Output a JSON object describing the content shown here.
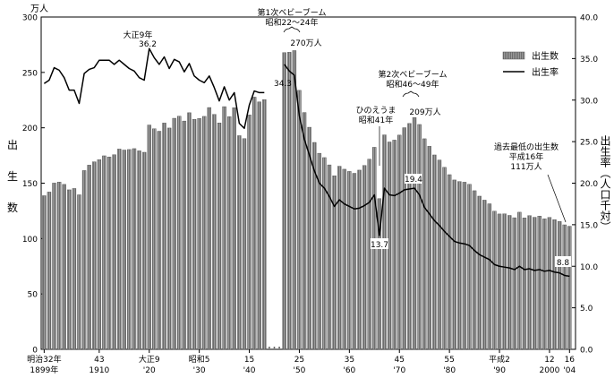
{
  "chart_data": {
    "type": "bar+line",
    "y_left": {
      "label": "出生数",
      "unit": "万人",
      "ylim": [
        0,
        300
      ],
      "ticks": [
        "0",
        "50",
        "100",
        "150",
        "200",
        "250",
        "300"
      ]
    },
    "y_right": {
      "label": "出生率（人口千対）",
      "ylim": [
        0,
        40
      ],
      "ticks": [
        "0.0",
        "5.0",
        "10.0",
        "15.0",
        "20.0",
        "25.0",
        "30.0",
        "35.0",
        "40.0"
      ]
    },
    "legend": {
      "placement": "top-right",
      "bar_label": "出生数",
      "line_label": "出生率"
    },
    "x_range": [
      1899,
      2004
    ],
    "x_ticks": [
      {
        "year": 1899,
        "top": "明治32年",
        "bottom": "1899年"
      },
      {
        "year": 1910,
        "top": "43",
        "bottom": "1910"
      },
      {
        "year": 1920,
        "top": "大正9",
        "bottom": "'20"
      },
      {
        "year": 1930,
        "top": "昭和5",
        "bottom": "'30"
      },
      {
        "year": 1940,
        "top": "15",
        "bottom": "'40"
      },
      {
        "year": 1950,
        "top": "25",
        "bottom": "'50"
      },
      {
        "year": 1960,
        "top": "35",
        "bottom": "'60"
      },
      {
        "year": 1970,
        "top": "45",
        "bottom": "'70"
      },
      {
        "year": 1980,
        "top": "55",
        "bottom": "'80"
      },
      {
        "year": 1990,
        "top": "平成2",
        "bottom": "'90"
      },
      {
        "year": 2000,
        "top": "12",
        "bottom": "2000"
      },
      {
        "year": 2004,
        "top": "16",
        "bottom": "'04"
      }
    ],
    "births": [
      [
        1899,
        138.7
      ],
      [
        1900,
        142.0
      ],
      [
        1901,
        150.1
      ],
      [
        1902,
        151.0
      ],
      [
        1903,
        148.9
      ],
      [
        1904,
        144.0
      ],
      [
        1905,
        145.2
      ],
      [
        1906,
        139.5
      ],
      [
        1907,
        161.4
      ],
      [
        1908,
        166.3
      ],
      [
        1909,
        169.3
      ],
      [
        1910,
        171.2
      ],
      [
        1911,
        174.7
      ],
      [
        1912,
        173.7
      ],
      [
        1913,
        175.7
      ],
      [
        1914,
        180.8
      ],
      [
        1915,
        179.9
      ],
      [
        1916,
        180.4
      ],
      [
        1917,
        181.2
      ],
      [
        1918,
        179.2
      ],
      [
        1919,
        177.9
      ],
      [
        1920,
        202.5
      ],
      [
        1921,
        199.1
      ],
      [
        1922,
        196.9
      ],
      [
        1923,
        204.3
      ],
      [
        1924,
        199.8
      ],
      [
        1925,
        208.6
      ],
      [
        1926,
        210.5
      ],
      [
        1927,
        206.1
      ],
      [
        1928,
        213.6
      ],
      [
        1929,
        207.7
      ],
      [
        1930,
        208.5
      ],
      [
        1931,
        210.3
      ],
      [
        1932,
        218.3
      ],
      [
        1933,
        212.1
      ],
      [
        1934,
        204.4
      ],
      [
        1935,
        219.1
      ],
      [
        1936,
        210.1
      ],
      [
        1937,
        218.1
      ],
      [
        1938,
        192.9
      ],
      [
        1939,
        190.2
      ],
      [
        1940,
        211.6
      ],
      [
        1941,
        227.7
      ],
      [
        1942,
        223.4
      ],
      [
        1943,
        225.4
      ],
      [
        1947,
        267.9
      ],
      [
        1948,
        268.2
      ],
      [
        1949,
        269.7
      ],
      [
        1950,
        233.8
      ],
      [
        1951,
        213.8
      ],
      [
        1952,
        200.5
      ],
      [
        1953,
        186.8
      ],
      [
        1954,
        177.0
      ],
      [
        1955,
        173.1
      ],
      [
        1956,
        166.5
      ],
      [
        1957,
        156.7
      ],
      [
        1958,
        165.3
      ],
      [
        1959,
        162.6
      ],
      [
        1960,
        160.6
      ],
      [
        1961,
        158.9
      ],
      [
        1962,
        161.8
      ],
      [
        1963,
        166.0
      ],
      [
        1964,
        171.7
      ],
      [
        1965,
        182.4
      ],
      [
        1966,
        136.1
      ],
      [
        1967,
        193.6
      ],
      [
        1968,
        187.2
      ],
      [
        1969,
        188.9
      ],
      [
        1970,
        193.4
      ],
      [
        1971,
        200.1
      ],
      [
        1972,
        203.9
      ],
      [
        1973,
        209.2
      ],
      [
        1974,
        203.0
      ],
      [
        1975,
        190.1
      ],
      [
        1976,
        183.3
      ],
      [
        1977,
        175.5
      ],
      [
        1978,
        170.9
      ],
      [
        1979,
        164.3
      ],
      [
        1980,
        157.7
      ],
      [
        1981,
        152.9
      ],
      [
        1982,
        151.5
      ],
      [
        1983,
        150.9
      ],
      [
        1984,
        149.0
      ],
      [
        1985,
        143.2
      ],
      [
        1986,
        138.3
      ],
      [
        1987,
        134.7
      ],
      [
        1988,
        131.4
      ],
      [
        1989,
        124.7
      ],
      [
        1990,
        122.2
      ],
      [
        1991,
        122.3
      ],
      [
        1992,
        120.9
      ],
      [
        1993,
        118.8
      ],
      [
        1994,
        123.8
      ],
      [
        1995,
        118.7
      ],
      [
        1996,
        120.7
      ],
      [
        1997,
        119.2
      ],
      [
        1998,
        120.3
      ],
      [
        1999,
        117.8
      ],
      [
        2000,
        119.1
      ],
      [
        2001,
        117.1
      ],
      [
        2002,
        115.4
      ],
      [
        2003,
        112.4
      ],
      [
        2004,
        111.1
      ]
    ],
    "rate": [
      [
        1899,
        32.0
      ],
      [
        1900,
        32.4
      ],
      [
        1901,
        33.9
      ],
      [
        1902,
        33.6
      ],
      [
        1903,
        32.7
      ],
      [
        1904,
        31.2
      ],
      [
        1905,
        31.2
      ],
      [
        1906,
        29.6
      ],
      [
        1907,
        33.2
      ],
      [
        1908,
        33.7
      ],
      [
        1909,
        33.9
      ],
      [
        1910,
        34.8
      ],
      [
        1911,
        34.8
      ],
      [
        1912,
        34.8
      ],
      [
        1913,
        34.3
      ],
      [
        1914,
        34.8
      ],
      [
        1915,
        34.3
      ],
      [
        1916,
        33.8
      ],
      [
        1917,
        33.5
      ],
      [
        1918,
        32.7
      ],
      [
        1919,
        32.4
      ],
      [
        1920,
        36.2
      ],
      [
        1921,
        35.1
      ],
      [
        1922,
        34.3
      ],
      [
        1923,
        35.2
      ],
      [
        1924,
        33.8
      ],
      [
        1925,
        34.9
      ],
      [
        1926,
        34.6
      ],
      [
        1927,
        33.4
      ],
      [
        1928,
        34.4
      ],
      [
        1929,
        32.9
      ],
      [
        1930,
        32.4
      ],
      [
        1931,
        32.1
      ],
      [
        1932,
        32.9
      ],
      [
        1933,
        31.5
      ],
      [
        1934,
        29.9
      ],
      [
        1935,
        31.6
      ],
      [
        1936,
        30.0
      ],
      [
        1937,
        30.9
      ],
      [
        1938,
        27.2
      ],
      [
        1939,
        26.6
      ],
      [
        1940,
        29.4
      ],
      [
        1941,
        31.1
      ],
      [
        1942,
        30.9
      ],
      [
        1943,
        30.9
      ],
      [
        1947,
        34.3
      ],
      [
        1948,
        33.5
      ],
      [
        1949,
        33.0
      ],
      [
        1950,
        28.1
      ],
      [
        1951,
        25.3
      ],
      [
        1952,
        23.4
      ],
      [
        1953,
        21.5
      ],
      [
        1954,
        20.0
      ],
      [
        1955,
        19.4
      ],
      [
        1956,
        18.4
      ],
      [
        1957,
        17.2
      ],
      [
        1958,
        18.0
      ],
      [
        1959,
        17.5
      ],
      [
        1960,
        17.2
      ],
      [
        1961,
        16.9
      ],
      [
        1962,
        17.0
      ],
      [
        1963,
        17.3
      ],
      [
        1964,
        17.7
      ],
      [
        1965,
        18.6
      ],
      [
        1966,
        13.7
      ],
      [
        1967,
        19.4
      ],
      [
        1968,
        18.6
      ],
      [
        1969,
        18.5
      ],
      [
        1970,
        18.8
      ],
      [
        1971,
        19.2
      ],
      [
        1972,
        19.3
      ],
      [
        1973,
        19.4
      ],
      [
        1974,
        18.6
      ],
      [
        1975,
        17.1
      ],
      [
        1976,
        16.3
      ],
      [
        1977,
        15.5
      ],
      [
        1978,
        14.9
      ],
      [
        1979,
        14.2
      ],
      [
        1980,
        13.6
      ],
      [
        1981,
        13.0
      ],
      [
        1982,
        12.8
      ],
      [
        1983,
        12.7
      ],
      [
        1984,
        12.5
      ],
      [
        1985,
        11.9
      ],
      [
        1986,
        11.4
      ],
      [
        1987,
        11.1
      ],
      [
        1988,
        10.8
      ],
      [
        1989,
        10.2
      ],
      [
        1990,
        10.0
      ],
      [
        1991,
        9.9
      ],
      [
        1992,
        9.8
      ],
      [
        1993,
        9.6
      ],
      [
        1994,
        10.0
      ],
      [
        1995,
        9.6
      ],
      [
        1996,
        9.7
      ],
      [
        1997,
        9.5
      ],
      [
        1998,
        9.6
      ],
      [
        1999,
        9.4
      ],
      [
        2000,
        9.5
      ],
      [
        2001,
        9.3
      ],
      [
        2002,
        9.2
      ],
      [
        2003,
        8.9
      ],
      [
        2004,
        8.8
      ]
    ],
    "annotations": {
      "taisho9_title": "大正9年",
      "taisho9_value": "36.2",
      "boom1_title": "第1次ベビーブーム",
      "boom1_period": "昭和22～24年",
      "boom1_births": "270万人",
      "boom1_rate": "34.3",
      "hinoe_title": "ひのえうま",
      "hinoe_year": "昭和41年",
      "hinoe_rate": "13.7",
      "boom2_title": "第2次ベビーブーム",
      "boom2_period": "昭和46～49年",
      "boom2_births": "209万人",
      "boom2_rate": "19.4",
      "low_title": "過去最低の出生数",
      "low_year": "平成16年",
      "low_births": "111万人",
      "low_rate": "8.8"
    }
  }
}
